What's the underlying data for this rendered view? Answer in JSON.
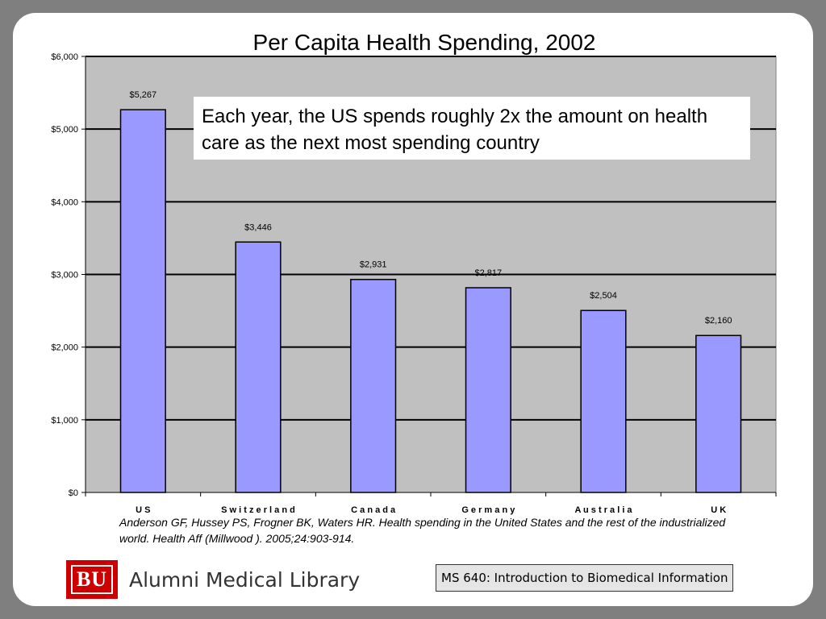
{
  "slide": {
    "callout": "Each year, the US spends roughly 2x the amount  on health care as the next most spending country",
    "citation": "Anderson GF, Hussey PS, Frogner BK, Waters HR. Health spending in the United States and the rest of the industrialized world. Health Aff (Millwood ). 2005;24:903-914.",
    "logo_mark": "BU",
    "logo_text": "Alumni Medical Library",
    "course_label": "MS 640: Introduction to Biomedical Information"
  },
  "colors": {
    "bar_fill": "#9999ff",
    "plot_background": "#c0c0c0",
    "gridline": "#000000",
    "brand_red": "#cc0000",
    "frame": "#7f7f7f"
  },
  "chart_data": {
    "type": "bar",
    "title": "Per Capita Health Spending, 2002",
    "xlabel": "",
    "ylabel": "",
    "categories": [
      "US",
      "Switzerland",
      "Canada",
      "Germany",
      "Australia",
      "UK"
    ],
    "category_labels": [
      "U S",
      "S w i t z e r l a n d",
      "C a n a d a",
      "G e r m a n y",
      "A u s t r a l i a",
      "U K"
    ],
    "values": [
      5267,
      3446,
      2931,
      2817,
      2504,
      2160
    ],
    "data_labels": [
      "$5,267",
      "$3,446",
      "$2,931",
      "$2,817",
      "$2,504",
      "$2,160"
    ],
    "ylim": [
      0,
      6000
    ],
    "yticks": [
      0,
      1000,
      2000,
      3000,
      4000,
      5000,
      6000
    ],
    "ytick_labels": [
      "$0",
      "$1,000",
      "$2,000",
      "$3,000",
      "$4,000",
      "$5,000",
      "$6,000"
    ],
    "grid": true,
    "legend": "none"
  }
}
